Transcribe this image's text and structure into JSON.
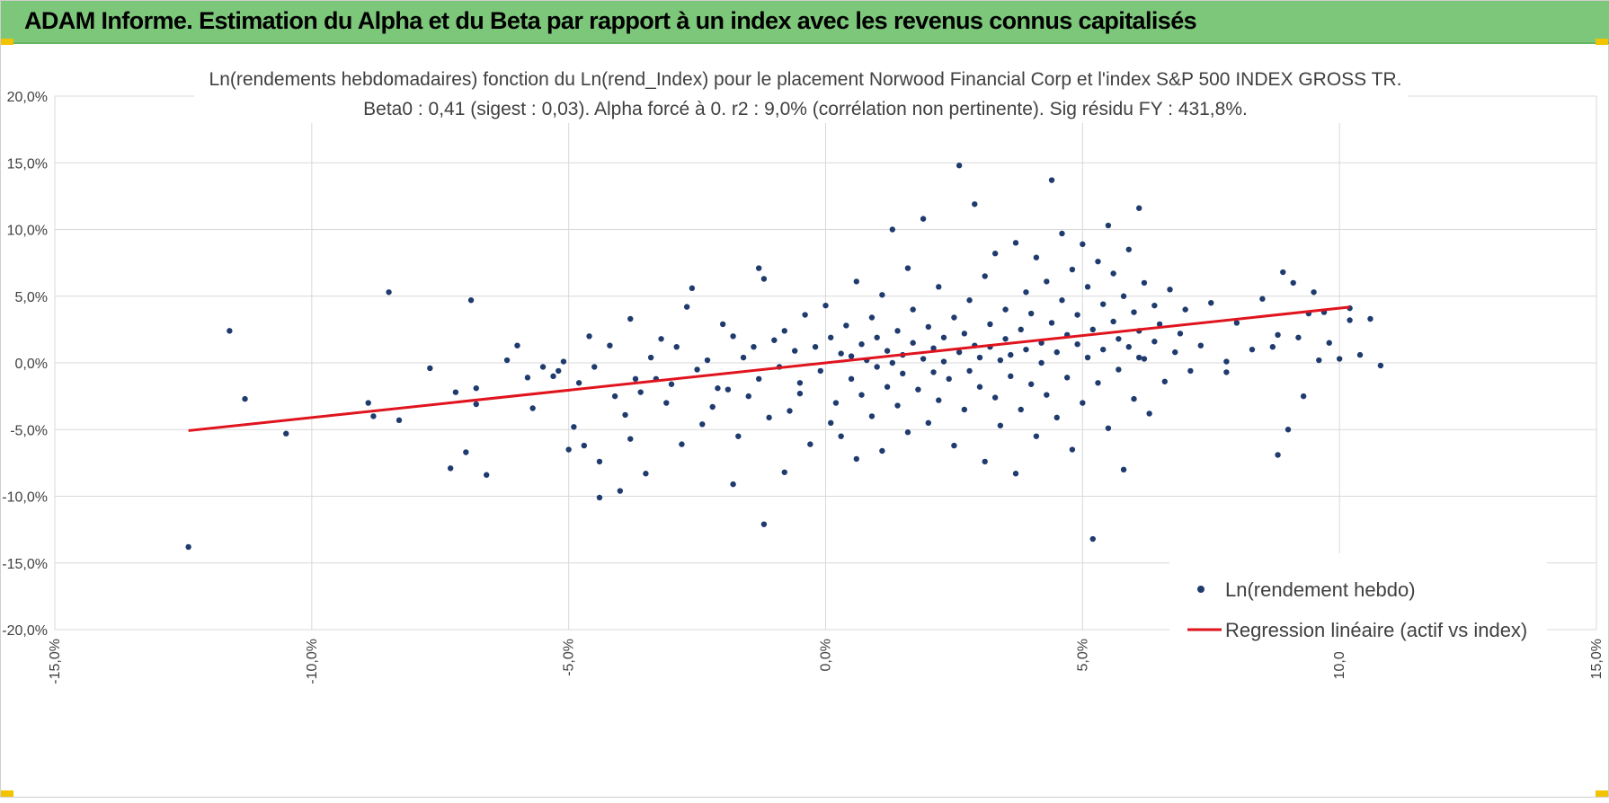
{
  "header": {
    "title": "ADAM Informe. Estimation du Alpha et du Beta par rapport à un index avec les revenus connus capitalisés",
    "background": "#7dc77b"
  },
  "chart_data": {
    "type": "scatter",
    "title": "Ln(rendements hebdomadaires) fonction du Ln(rend_Index) pour le placement Norwood Financial Corp et l'index S&P 500 INDEX GROSS TR.",
    "subtitle": "Beta0 : 0,41  (sigest : 0,03). Alpha forcé à 0. r2 : 9,0% (corrélation non pertinente). Sig résidu FY : 431,8%.",
    "xlabel": "",
    "ylabel": "",
    "xlim": [
      -0.15,
      0.15
    ],
    "ylim": [
      -0.2,
      0.2
    ],
    "x_ticks": [
      -0.15,
      -0.1,
      -0.05,
      0.0,
      0.05,
      0.1,
      0.15
    ],
    "x_tick_labels": [
      "-15,0%",
      "-10,0%",
      "-5,0%",
      "0,0%",
      "5,0%",
      "10,0%",
      "15,0%"
    ],
    "y_ticks": [
      0.2,
      0.15,
      0.1,
      0.05,
      0.0,
      -0.05,
      -0.1,
      -0.15,
      -0.2
    ],
    "y_tick_labels": [
      "20,0%",
      "15,0%",
      "10,0%",
      "5,0%",
      "0,0%",
      "-5,0%",
      "-10,0%",
      "-15,0%",
      "-20,0%"
    ],
    "grid": true,
    "legend_position": "bottom-right",
    "series": [
      {
        "name": "Ln(rendement hebdo)",
        "kind": "scatter",
        "color": "#1f3b6e",
        "points": [
          [
            -0.124,
            -0.138
          ],
          [
            -0.116,
            0.024
          ],
          [
            -0.113,
            -0.027
          ],
          [
            -0.105,
            -0.053
          ],
          [
            -0.089,
            -0.03
          ],
          [
            -0.088,
            -0.04
          ],
          [
            -0.085,
            0.053
          ],
          [
            -0.083,
            -0.043
          ],
          [
            -0.077,
            -0.004
          ],
          [
            -0.073,
            -0.079
          ],
          [
            -0.072,
            -0.022
          ],
          [
            -0.07,
            -0.067
          ],
          [
            -0.069,
            0.047
          ],
          [
            -0.068,
            -0.019
          ],
          [
            -0.068,
            -0.031
          ],
          [
            -0.066,
            -0.084
          ],
          [
            -0.062,
            0.002
          ],
          [
            -0.06,
            0.013
          ],
          [
            -0.058,
            -0.011
          ],
          [
            -0.057,
            -0.034
          ],
          [
            -0.055,
            -0.003
          ],
          [
            -0.053,
            -0.01
          ],
          [
            -0.052,
            -0.006
          ],
          [
            -0.051,
            0.001
          ],
          [
            -0.05,
            -0.065
          ],
          [
            -0.049,
            -0.048
          ],
          [
            -0.048,
            -0.015
          ],
          [
            -0.047,
            -0.062
          ],
          [
            -0.046,
            0.02
          ],
          [
            -0.045,
            -0.003
          ],
          [
            -0.044,
            -0.101
          ],
          [
            -0.044,
            -0.074
          ],
          [
            -0.042,
            0.013
          ],
          [
            -0.041,
            -0.025
          ],
          [
            -0.04,
            -0.096
          ],
          [
            -0.039,
            -0.039
          ],
          [
            -0.038,
            -0.057
          ],
          [
            -0.038,
            0.033
          ],
          [
            -0.037,
            -0.012
          ],
          [
            -0.036,
            -0.022
          ],
          [
            -0.035,
            -0.083
          ],
          [
            -0.034,
            0.004
          ],
          [
            -0.033,
            -0.012
          ],
          [
            -0.032,
            0.018
          ],
          [
            -0.031,
            -0.03
          ],
          [
            -0.03,
            -0.016
          ],
          [
            -0.029,
            0.012
          ],
          [
            -0.028,
            -0.061
          ],
          [
            -0.027,
            0.042
          ],
          [
            -0.026,
            0.056
          ],
          [
            -0.025,
            -0.005
          ],
          [
            -0.024,
            -0.046
          ],
          [
            -0.023,
            0.002
          ],
          [
            -0.022,
            -0.033
          ],
          [
            -0.021,
            -0.019
          ],
          [
            -0.02,
            0.029
          ],
          [
            -0.019,
            -0.02
          ],
          [
            -0.018,
            -0.091
          ],
          [
            -0.018,
            0.02
          ],
          [
            -0.017,
            -0.055
          ],
          [
            -0.016,
            0.004
          ],
          [
            -0.015,
            -0.025
          ],
          [
            -0.014,
            0.012
          ],
          [
            -0.013,
            -0.012
          ],
          [
            -0.013,
            0.071
          ],
          [
            -0.012,
            -0.121
          ],
          [
            -0.012,
            0.063
          ],
          [
            -0.011,
            -0.041
          ],
          [
            -0.01,
            0.017
          ],
          [
            -0.009,
            -0.003
          ],
          [
            -0.008,
            -0.082
          ],
          [
            -0.008,
            0.024
          ],
          [
            -0.007,
            -0.036
          ],
          [
            -0.006,
            0.009
          ],
          [
            -0.005,
            -0.015
          ],
          [
            -0.005,
            -0.023
          ],
          [
            -0.004,
            0.036
          ],
          [
            -0.003,
            -0.061
          ],
          [
            -0.002,
            0.012
          ],
          [
            -0.001,
            -0.006
          ],
          [
            0.0,
            0.043
          ],
          [
            0.001,
            -0.045
          ],
          [
            0.001,
            0.019
          ],
          [
            0.002,
            -0.03
          ],
          [
            0.003,
            0.007
          ],
          [
            0.003,
            -0.055
          ],
          [
            0.004,
            0.028
          ],
          [
            0.005,
            -0.012
          ],
          [
            0.005,
            0.005
          ],
          [
            0.006,
            -0.072
          ],
          [
            0.006,
            0.061
          ],
          [
            0.007,
            0.014
          ],
          [
            0.007,
            -0.024
          ],
          [
            0.008,
            0.002
          ],
          [
            0.009,
            0.034
          ],
          [
            0.009,
            -0.04
          ],
          [
            0.01,
            0.019
          ],
          [
            0.01,
            -0.003
          ],
          [
            0.011,
            -0.066
          ],
          [
            0.011,
            0.051
          ],
          [
            0.012,
            0.009
          ],
          [
            0.012,
            -0.018
          ],
          [
            0.013,
            0.0
          ],
          [
            0.013,
            0.1
          ],
          [
            0.014,
            -0.032
          ],
          [
            0.014,
            0.024
          ],
          [
            0.015,
            0.006
          ],
          [
            0.015,
            -0.008
          ],
          [
            0.016,
            0.071
          ],
          [
            0.016,
            -0.052
          ],
          [
            0.017,
            0.015
          ],
          [
            0.017,
            0.04
          ],
          [
            0.018,
            -0.02
          ],
          [
            0.019,
            0.003
          ],
          [
            0.019,
            0.108
          ],
          [
            0.02,
            -0.045
          ],
          [
            0.02,
            0.027
          ],
          [
            0.021,
            0.011
          ],
          [
            0.021,
            -0.007
          ],
          [
            0.022,
            0.057
          ],
          [
            0.022,
            -0.028
          ],
          [
            0.023,
            0.019
          ],
          [
            0.023,
            0.001
          ],
          [
            0.024,
            -0.012
          ],
          [
            0.025,
            0.034
          ],
          [
            0.025,
            -0.062
          ],
          [
            0.026,
            0.008
          ],
          [
            0.026,
            0.148
          ],
          [
            0.027,
            -0.035
          ],
          [
            0.027,
            0.022
          ],
          [
            0.028,
            0.047
          ],
          [
            0.028,
            -0.006
          ],
          [
            0.029,
            0.013
          ],
          [
            0.029,
            0.119
          ],
          [
            0.03,
            -0.018
          ],
          [
            0.03,
            0.004
          ],
          [
            0.031,
            0.065
          ],
          [
            0.031,
            -0.074
          ],
          [
            0.032,
            0.029
          ],
          [
            0.032,
            0.012
          ],
          [
            0.033,
            -0.026
          ],
          [
            0.033,
            0.082
          ],
          [
            0.034,
            0.002
          ],
          [
            0.034,
            -0.047
          ],
          [
            0.035,
            0.04
          ],
          [
            0.035,
            0.018
          ],
          [
            0.036,
            -0.01
          ],
          [
            0.036,
            0.006
          ],
          [
            0.037,
            0.09
          ],
          [
            0.037,
            -0.083
          ],
          [
            0.038,
            0.025
          ],
          [
            0.038,
            -0.035
          ],
          [
            0.039,
            0.053
          ],
          [
            0.039,
            0.01
          ],
          [
            0.04,
            -0.016
          ],
          [
            0.04,
            0.037
          ],
          [
            0.041,
            0.079
          ],
          [
            0.041,
            -0.055
          ],
          [
            0.042,
            0.015
          ],
          [
            0.042,
            0.0
          ],
          [
            0.043,
            0.061
          ],
          [
            0.043,
            -0.024
          ],
          [
            0.044,
            0.137
          ],
          [
            0.044,
            0.03
          ],
          [
            0.045,
            -0.041
          ],
          [
            0.045,
            0.008
          ],
          [
            0.046,
            0.047
          ],
          [
            0.046,
            0.097
          ],
          [
            0.047,
            -0.011
          ],
          [
            0.047,
            0.021
          ],
          [
            0.048,
            0.07
          ],
          [
            0.048,
            -0.065
          ],
          [
            0.049,
            0.014
          ],
          [
            0.049,
            0.036
          ],
          [
            0.05,
            -0.03
          ],
          [
            0.05,
            0.089
          ],
          [
            0.051,
            0.004
          ],
          [
            0.051,
            0.057
          ],
          [
            0.052,
            -0.132
          ],
          [
            0.052,
            0.025
          ],
          [
            0.053,
            0.076
          ],
          [
            0.053,
            -0.015
          ],
          [
            0.054,
            0.044
          ],
          [
            0.054,
            0.01
          ],
          [
            0.055,
            0.103
          ],
          [
            0.055,
            -0.049
          ],
          [
            0.056,
            0.031
          ],
          [
            0.056,
            0.067
          ],
          [
            0.057,
            -0.005
          ],
          [
            0.057,
            0.018
          ],
          [
            0.058,
            0.05
          ],
          [
            0.058,
            -0.08
          ],
          [
            0.059,
            0.085
          ],
          [
            0.059,
            0.012
          ],
          [
            0.06,
            0.038
          ],
          [
            0.06,
            -0.027
          ],
          [
            0.061,
            0.116
          ],
          [
            0.061,
            0.024
          ],
          [
            0.062,
            0.06
          ],
          [
            0.062,
            0.003
          ],
          [
            0.063,
            -0.038
          ],
          [
            0.064,
            0.043
          ],
          [
            0.064,
            0.016
          ],
          [
            0.065,
            0.029
          ],
          [
            0.066,
            -0.014
          ],
          [
            0.067,
            0.055
          ],
          [
            0.068,
            0.008
          ],
          [
            0.069,
            0.022
          ],
          [
            0.07,
            0.04
          ],
          [
            0.071,
            -0.006
          ],
          [
            0.073,
            0.013
          ],
          [
            0.075,
            0.045
          ],
          [
            0.078,
            -0.007
          ],
          [
            0.08,
            0.03
          ],
          [
            0.083,
            0.01
          ],
          [
            0.085,
            0.048
          ],
          [
            0.088,
            -0.069
          ],
          [
            0.089,
            0.068
          ],
          [
            0.09,
            -0.05
          ],
          [
            0.091,
            0.06
          ],
          [
            0.092,
            0.019
          ],
          [
            0.093,
            -0.025
          ],
          [
            0.094,
            0.037
          ],
          [
            0.095,
            0.053
          ],
          [
            0.096,
            0.002
          ],
          [
            0.097,
            0.038
          ],
          [
            0.098,
            0.015
          ],
          [
            0.1,
            0.003
          ],
          [
            0.102,
            0.041
          ],
          [
            0.104,
            0.006
          ],
          [
            0.106,
            0.033
          ],
          [
            0.108,
            -0.002
          ],
          [
            0.061,
            0.004
          ],
          [
            0.078,
            0.001
          ],
          [
            0.087,
            0.012
          ],
          [
            0.088,
            0.021
          ],
          [
            0.102,
            0.032
          ]
        ]
      },
      {
        "name": "Regression linéaire (actif vs index)",
        "kind": "line",
        "color": "#e0141e",
        "x": [
          -0.124,
          0.102
        ],
        "y": [
          -0.0508,
          0.0418
        ]
      }
    ]
  }
}
